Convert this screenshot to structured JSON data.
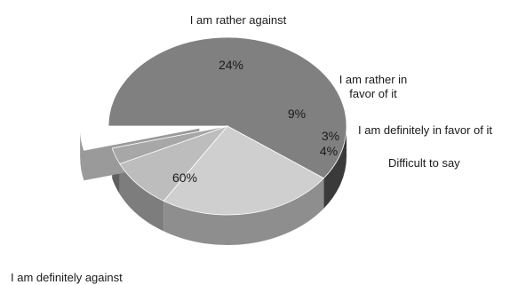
{
  "chart_data": {
    "type": "pie",
    "style": "3d-exploded",
    "slices": [
      {
        "label_lines": [
          "I am definitely against"
        ],
        "value": 60,
        "value_label": "60%",
        "color": "#808080",
        "side": "#3a3a3a"
      },
      {
        "label_lines": [
          "I am rather against"
        ],
        "value": 24,
        "value_label": "24%",
        "color": "#cfcfcf",
        "side": "#8e8e8e"
      },
      {
        "label_lines": [
          "I am rather in",
          "favor of it"
        ],
        "value": 9,
        "value_label": "9%",
        "color": "#bdbdbd",
        "side": "#7d7d7d"
      },
      {
        "label_lines": [
          "I am definitely in favor of it"
        ],
        "value": 3,
        "value_label": "3%",
        "color": "#a7a7a7",
        "side": "#5f5f5f"
      },
      {
        "label_lines": [
          "Difficult to say"
        ],
        "value": 4,
        "value_label": "4%",
        "color": "#ffffff",
        "side": "#9a9a9a"
      }
    ]
  }
}
